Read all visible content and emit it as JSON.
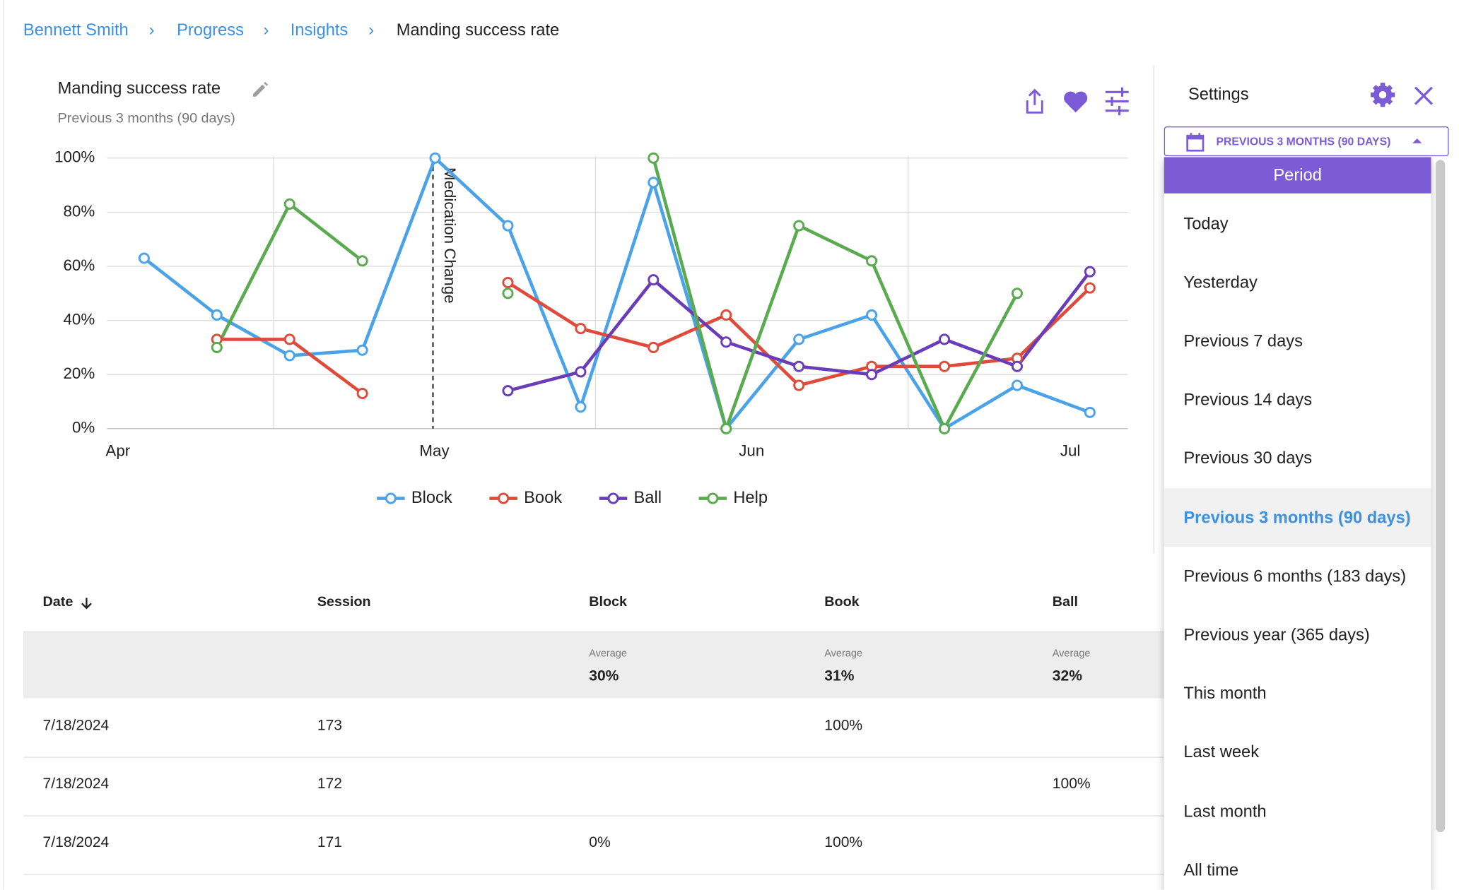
{
  "breadcrumbs": [
    "Bennett Smith",
    "Progress",
    "Insights",
    "Manding success rate"
  ],
  "chart_data": {
    "type": "line",
    "title": "Manding success rate",
    "subtitle": "Previous 3 months (90 days)",
    "x": [
      0,
      1,
      2,
      3,
      4,
      5,
      6,
      7,
      8,
      9,
      10,
      11,
      12,
      13
    ],
    "xlim": [
      -0.51,
      13.52
    ],
    "xticks": [
      {
        "value": -0.36,
        "label": "Apr"
      },
      {
        "value": 3.99,
        "label": "May"
      },
      {
        "value": 8.35,
        "label": "Jun"
      },
      {
        "value": 12.73,
        "label": "Jul"
      }
    ],
    "ylim": [
      0,
      100
    ],
    "yticks": [
      {
        "value": 0,
        "label": "0%"
      },
      {
        "value": 20,
        "label": "20%"
      },
      {
        "value": 40,
        "label": "40%"
      },
      {
        "value": 60,
        "label": "60%"
      },
      {
        "value": 80,
        "label": "80%"
      },
      {
        "value": 100,
        "label": "100%"
      }
    ],
    "grid": true,
    "legend": "bottom",
    "series": [
      {
        "name": "Block",
        "color": "#4aa3e8",
        "values": [
          63,
          42,
          27,
          29,
          100,
          75,
          8,
          91,
          0,
          33,
          42,
          0,
          16,
          6
        ]
      },
      {
        "name": "Book",
        "color": "#e04a3a",
        "values": [
          null,
          33,
          33,
          13,
          null,
          54,
          37,
          30,
          42,
          16,
          23,
          23,
          26,
          52
        ]
      },
      {
        "name": "Ball",
        "color": "#6a3db8",
        "values": [
          null,
          null,
          null,
          null,
          null,
          14,
          21,
          55,
          32,
          23,
          20,
          33,
          23,
          58
        ]
      },
      {
        "name": "Help",
        "color": "#5aab4f",
        "values": [
          null,
          30,
          83,
          62,
          null,
          50,
          null,
          100,
          0,
          75,
          62,
          0,
          50,
          null
        ]
      }
    ],
    "annotations": [
      {
        "text": "Medication Change",
        "x": 3.97
      }
    ]
  },
  "settings": {
    "title": "Settings",
    "period_button": "PREVIOUS 3 MONTHS (90 DAYS)",
    "menu_header": "Period",
    "options": [
      "Today",
      "Yesterday",
      "Previous 7 days",
      "Previous 14 days",
      "Previous 30 days",
      "Previous 3 months (90 days)",
      "Previous 6 months (183 days)",
      "Previous year (365 days)",
      "This month",
      "Last week",
      "Last month",
      "All time"
    ],
    "selected": 5
  },
  "table": {
    "headers": [
      "Date",
      "Session",
      "Block",
      "Book",
      "Ball"
    ],
    "averages": [
      null,
      null,
      {
        "label": "Average",
        "value": "30%"
      },
      {
        "label": "Average",
        "value": "31%"
      },
      {
        "label": "Average",
        "value": "32%"
      }
    ],
    "rows": [
      [
        "7/18/2024",
        "173",
        null,
        "100%",
        null
      ],
      [
        "7/18/2024",
        "172",
        null,
        null,
        "100%"
      ],
      [
        "7/18/2024",
        "171",
        "0%",
        "100%",
        null
      ]
    ]
  }
}
